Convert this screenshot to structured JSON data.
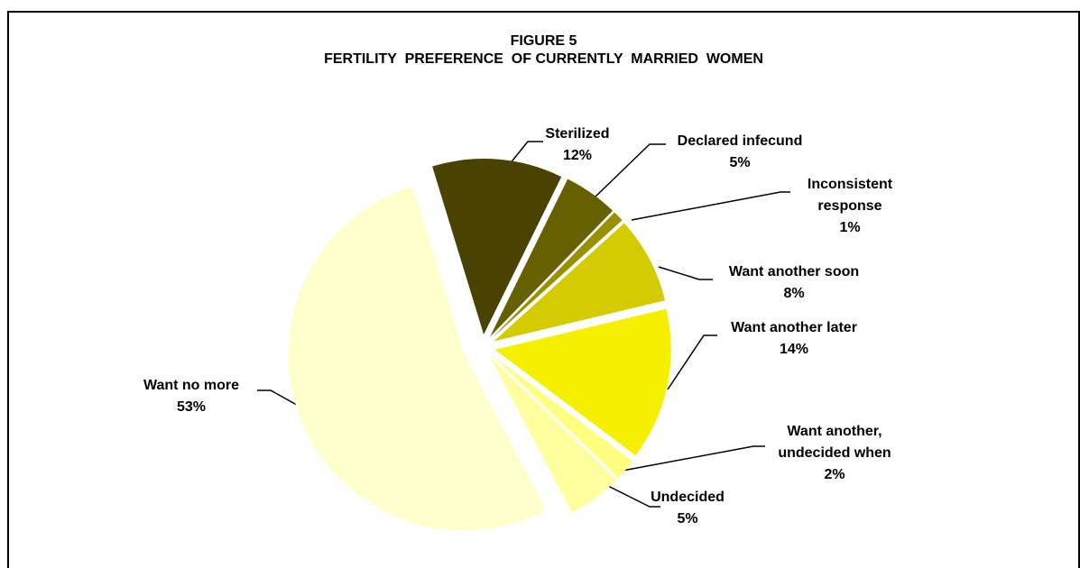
{
  "chart_data": {
    "type": "pie",
    "title": "FIGURE 5",
    "subtitle": "FERTILITY  PREFERENCE  OF CURRENTLY  MARRIED  WOMEN",
    "categories": [
      "Sterilized",
      "Declared infecund",
      "Inconsistent response",
      "Want another soon",
      "Want another later",
      "Want another, undecided when",
      "Undecided",
      "Want no more"
    ],
    "values": [
      12,
      5,
      1,
      8,
      14,
      2,
      5,
      53
    ],
    "value_labels": [
      "12%",
      "5%",
      "1%",
      "8%",
      "14%",
      "2%",
      "5%",
      "53%"
    ],
    "colors": [
      "#4a4200",
      "#666000",
      "#999000",
      "#d4cc00",
      "#f5f000",
      "#ffff80",
      "#ffffa0",
      "#ffffcc"
    ]
  }
}
